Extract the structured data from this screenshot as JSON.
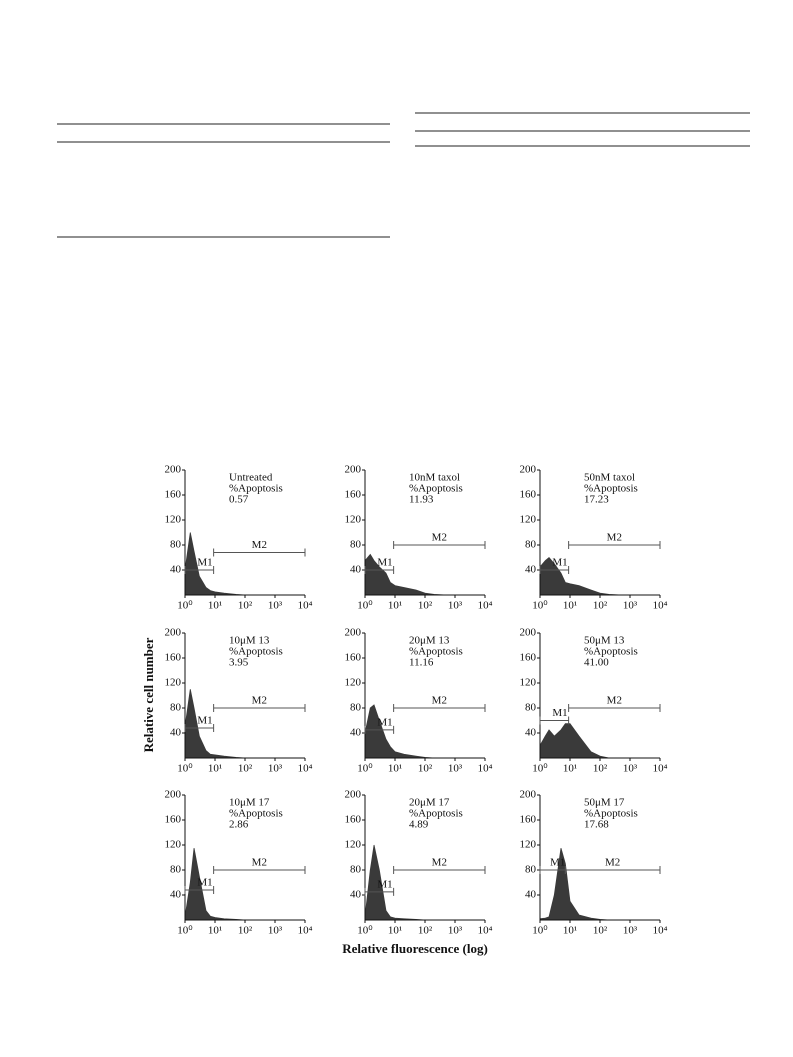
{
  "ylabel": "Relative cell number",
  "xlabel": "Relative fluorescence (log)",
  "chart_data": [
    {
      "type": "histogram",
      "annotation": [
        "Untreated",
        "%Apoptosis",
        "0.57"
      ],
      "log_x": true,
      "color": "#3a3a3a",
      "x": [
        1,
        1.5,
        2,
        3,
        5,
        7,
        10,
        20,
        50,
        100,
        200,
        500,
        1000
      ],
      "values": [
        40,
        100,
        70,
        30,
        12,
        7,
        5,
        3,
        1,
        0,
        0,
        0,
        0
      ],
      "xlim": [
        1,
        10000
      ],
      "ylim": [
        0,
        200
      ],
      "yticks": [
        40,
        80,
        120,
        160,
        200
      ],
      "xticks": [
        {
          "value": 1,
          "label": "10⁰"
        },
        {
          "value": 10,
          "label": "10¹"
        },
        {
          "value": 100,
          "label": "10²"
        },
        {
          "value": 1000,
          "label": "10³"
        },
        {
          "value": 10000,
          "label": "10⁴"
        }
      ],
      "gates": [
        {
          "label": "M1",
          "range": [
            1,
            9
          ],
          "y": 40
        },
        {
          "label": "M2",
          "range": [
            9,
            10000
          ],
          "y": 68
        }
      ]
    },
    {
      "type": "histogram",
      "annotation": [
        "10nM taxol",
        "%Apoptosis",
        "11.93"
      ],
      "log_x": true,
      "color": "#3a3a3a",
      "x": [
        1,
        1.5,
        2,
        3,
        5,
        7,
        10,
        20,
        50,
        100,
        200,
        500,
        1000
      ],
      "values": [
        55,
        65,
        55,
        45,
        35,
        20,
        15,
        12,
        8,
        3,
        1,
        0,
        0
      ],
      "xlim": [
        1,
        10000
      ],
      "ylim": [
        0,
        200
      ],
      "yticks": [
        40,
        80,
        120,
        160,
        200
      ],
      "xticks": [
        {
          "value": 1,
          "label": "10⁰"
        },
        {
          "value": 10,
          "label": "10¹"
        },
        {
          "value": 100,
          "label": "10²"
        },
        {
          "value": 1000,
          "label": "10³"
        },
        {
          "value": 10000,
          "label": "10⁴"
        }
      ],
      "gates": [
        {
          "label": "M1",
          "range": [
            1,
            9
          ],
          "y": 40
        },
        {
          "label": "M2",
          "range": [
            9,
            10000
          ],
          "y": 80
        }
      ]
    },
    {
      "type": "histogram",
      "annotation": [
        "50nM taxol",
        "%Apoptosis",
        "17.23"
      ],
      "log_x": true,
      "color": "#3a3a3a",
      "x": [
        1,
        1.5,
        2,
        3,
        5,
        7,
        10,
        20,
        50,
        100,
        200,
        500,
        1000
      ],
      "values": [
        45,
        55,
        60,
        50,
        35,
        20,
        18,
        15,
        8,
        3,
        1,
        0,
        0
      ],
      "xlim": [
        1,
        10000
      ],
      "ylim": [
        0,
        200
      ],
      "yticks": [
        40,
        80,
        120,
        160,
        200
      ],
      "xticks": [
        {
          "value": 1,
          "label": "10⁰"
        },
        {
          "value": 10,
          "label": "10¹"
        },
        {
          "value": 100,
          "label": "10²"
        },
        {
          "value": 1000,
          "label": "10³"
        },
        {
          "value": 10000,
          "label": "10⁴"
        }
      ],
      "gates": [
        {
          "label": "M1",
          "range": [
            1,
            9
          ],
          "y": 40
        },
        {
          "label": "M2",
          "range": [
            9,
            10000
          ],
          "y": 80
        }
      ]
    },
    {
      "type": "histogram",
      "annotation": [
        "10μM 13",
        "%Apoptosis",
        "3.95"
      ],
      "log_x": true,
      "color": "#3a3a3a",
      "x": [
        1,
        1.5,
        2,
        3,
        5,
        7,
        10,
        20,
        50,
        100,
        200,
        500,
        1000
      ],
      "values": [
        50,
        110,
        80,
        35,
        12,
        6,
        5,
        3,
        1,
        0,
        0,
        0,
        0
      ],
      "xlim": [
        1,
        10000
      ],
      "ylim": [
        0,
        200
      ],
      "yticks": [
        40,
        80,
        120,
        160,
        200
      ],
      "xticks": [
        {
          "value": 1,
          "label": "10⁰"
        },
        {
          "value": 10,
          "label": "10¹"
        },
        {
          "value": 100,
          "label": "10²"
        },
        {
          "value": 1000,
          "label": "10³"
        },
        {
          "value": 10000,
          "label": "10⁴"
        }
      ],
      "gates": [
        {
          "label": "M1",
          "range": [
            1,
            9
          ],
          "y": 48
        },
        {
          "label": "M2",
          "range": [
            9,
            10000
          ],
          "y": 80
        }
      ]
    },
    {
      "type": "histogram",
      "annotation": [
        "20μM 13",
        "%Apoptosis",
        "11.16"
      ],
      "log_x": true,
      "color": "#3a3a3a",
      "x": [
        1,
        1.5,
        2,
        3,
        5,
        7,
        10,
        20,
        50,
        100,
        200,
        500,
        1000
      ],
      "values": [
        40,
        80,
        85,
        60,
        30,
        18,
        10,
        6,
        3,
        1,
        0,
        0,
        0
      ],
      "xlim": [
        1,
        10000
      ],
      "ylim": [
        0,
        200
      ],
      "yticks": [
        40,
        80,
        120,
        160,
        200
      ],
      "xticks": [
        {
          "value": 1,
          "label": "10⁰"
        },
        {
          "value": 10,
          "label": "10¹"
        },
        {
          "value": 100,
          "label": "10²"
        },
        {
          "value": 1000,
          "label": "10³"
        },
        {
          "value": 10000,
          "label": "10⁴"
        }
      ],
      "gates": [
        {
          "label": "M1",
          "range": [
            1,
            9
          ],
          "y": 45
        },
        {
          "label": "M2",
          "range": [
            9,
            10000
          ],
          "y": 80
        }
      ]
    },
    {
      "type": "histogram",
      "annotation": [
        "50μM 13",
        "%Apoptosis",
        "41.00"
      ],
      "log_x": true,
      "color": "#3a3a3a",
      "x": [
        1,
        1.5,
        2,
        3,
        5,
        7,
        10,
        20,
        50,
        100,
        200,
        500,
        1000
      ],
      "values": [
        20,
        35,
        45,
        35,
        45,
        55,
        55,
        35,
        10,
        3,
        0,
        0,
        0
      ],
      "xlim": [
        1,
        10000
      ],
      "ylim": [
        0,
        200
      ],
      "yticks": [
        40,
        80,
        120,
        160,
        200
      ],
      "xticks": [
        {
          "value": 1,
          "label": "10⁰"
        },
        {
          "value": 10,
          "label": "10¹"
        },
        {
          "value": 100,
          "label": "10²"
        },
        {
          "value": 1000,
          "label": "10³"
        },
        {
          "value": 10000,
          "label": "10⁴"
        }
      ],
      "gates": [
        {
          "label": "M1",
          "range": [
            1,
            9
          ],
          "y": 60
        },
        {
          "label": "M2",
          "range": [
            9,
            10000
          ],
          "y": 80
        }
      ]
    },
    {
      "type": "histogram",
      "annotation": [
        "10μM 17",
        "%Apoptosis",
        "2.86"
      ],
      "log_x": true,
      "color": "#3a3a3a",
      "x": [
        1,
        1.5,
        2,
        3,
        5,
        7,
        10,
        20,
        50,
        100,
        200,
        500,
        1000
      ],
      "values": [
        5,
        60,
        115,
        70,
        15,
        6,
        4,
        2,
        1,
        0,
        0,
        0,
        0
      ],
      "xlim": [
        1,
        10000
      ],
      "ylim": [
        0,
        200
      ],
      "yticks": [
        40,
        80,
        120,
        160,
        200
      ],
      "xticks": [
        {
          "value": 1,
          "label": "10⁰"
        },
        {
          "value": 10,
          "label": "10¹"
        },
        {
          "value": 100,
          "label": "10²"
        },
        {
          "value": 1000,
          "label": "10³"
        },
        {
          "value": 10000,
          "label": "10⁴"
        }
      ],
      "gates": [
        {
          "label": "M1",
          "range": [
            1,
            9
          ],
          "y": 48
        },
        {
          "label": "M2",
          "range": [
            9,
            10000
          ],
          "y": 80
        }
      ]
    },
    {
      "type": "histogram",
      "annotation": [
        "20μM 17",
        "%Apoptosis",
        "4.89"
      ],
      "log_x": true,
      "color": "#3a3a3a",
      "x": [
        1,
        1.5,
        2,
        3,
        5,
        7,
        10,
        20,
        50,
        100,
        200,
        500,
        1000
      ],
      "values": [
        5,
        80,
        120,
        80,
        15,
        5,
        3,
        2,
        1,
        0,
        0,
        0,
        0
      ],
      "xlim": [
        1,
        10000
      ],
      "ylim": [
        0,
        200
      ],
      "yticks": [
        40,
        80,
        120,
        160,
        200
      ],
      "xticks": [
        {
          "value": 1,
          "label": "10⁰"
        },
        {
          "value": 10,
          "label": "10¹"
        },
        {
          "value": 100,
          "label": "10²"
        },
        {
          "value": 1000,
          "label": "10³"
        },
        {
          "value": 10000,
          "label": "10⁴"
        }
      ],
      "gates": [
        {
          "label": "M1",
          "range": [
            1,
            9
          ],
          "y": 45
        },
        {
          "label": "M2",
          "range": [
            9,
            10000
          ],
          "y": 80
        }
      ]
    },
    {
      "type": "histogram",
      "annotation": [
        "50μM 17",
        "%Apoptosis",
        "17.68"
      ],
      "log_x": true,
      "color": "#3a3a3a",
      "x": [
        1,
        1.5,
        2,
        3,
        5,
        7,
        10,
        20,
        50,
        100,
        200,
        500,
        1000
      ],
      "values": [
        2,
        3,
        5,
        40,
        115,
        90,
        30,
        8,
        3,
        1,
        0,
        0,
        0
      ],
      "xlim": [
        1,
        10000
      ],
      "ylim": [
        0,
        200
      ],
      "yticks": [
        40,
        80,
        120,
        160,
        200
      ],
      "xticks": [
        {
          "value": 1,
          "label": "10⁰"
        },
        {
          "value": 10,
          "label": "10¹"
        },
        {
          "value": 100,
          "label": "10²"
        },
        {
          "value": 1000,
          "label": "10³"
        },
        {
          "value": 10000,
          "label": "10⁴"
        }
      ],
      "gates": [
        {
          "label": "M1",
          "range": [
            1,
            7
          ],
          "y": 80
        },
        {
          "label": "M2",
          "range": [
            7,
            10000
          ],
          "y": 80
        }
      ]
    }
  ]
}
